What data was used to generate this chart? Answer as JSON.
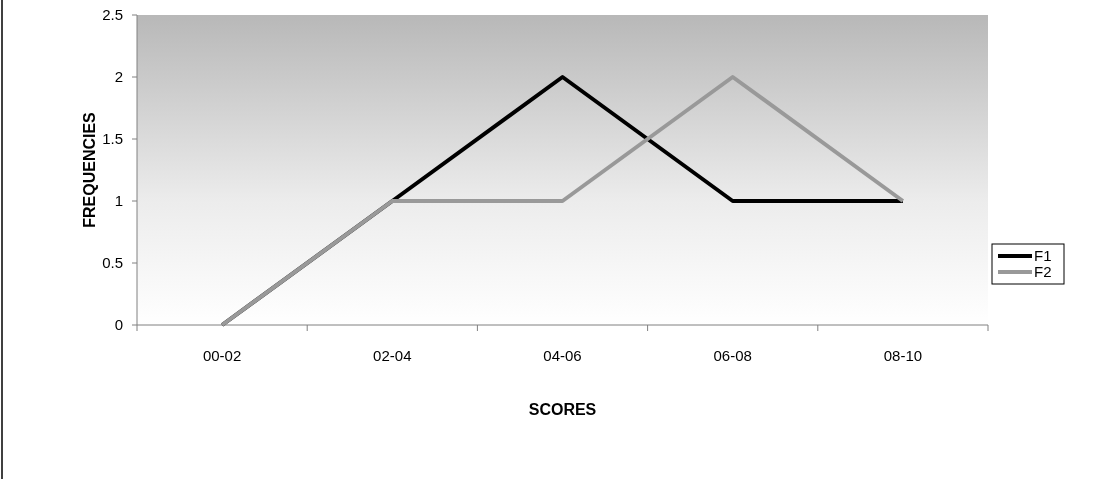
{
  "chart_data": {
    "type": "line",
    "xlabel": "SCORES",
    "ylabel": "FREQUENCIES",
    "categories": [
      "00-02",
      "02-04",
      "04-06",
      "06-08",
      "08-10"
    ],
    "series": [
      {
        "name": "F1",
        "color": "#000000",
        "values": [
          0,
          1,
          2,
          1,
          1
        ]
      },
      {
        "name": "F2",
        "color": "#999999",
        "values": [
          0,
          1,
          1,
          2,
          1
        ]
      }
    ],
    "ylim": [
      0,
      2.5
    ],
    "yticks": [
      0,
      0.5,
      1,
      1.5,
      2,
      2.5
    ],
    "grid": false,
    "legend": "right",
    "marker": "none",
    "line_style": "solid"
  }
}
